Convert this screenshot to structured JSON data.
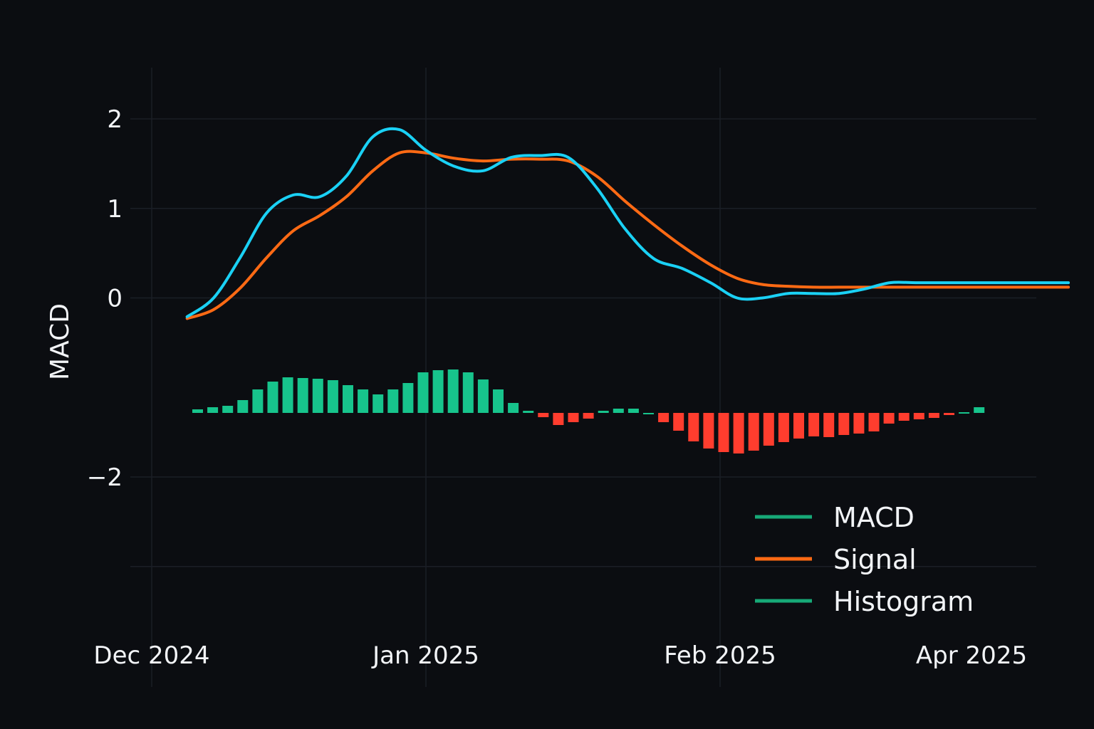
{
  "chart_data": {
    "type": "line",
    "ylabel": "MACD",
    "xlabel": "",
    "x_ticks": [
      "Dec 2024",
      "Jan 2025",
      "Feb 2025",
      "Apr 2025"
    ],
    "y_ticks": [
      2,
      1,
      0,
      -2
    ],
    "y_tick_labels": [
      "2",
      "1",
      "0",
      "−2"
    ],
    "ylim": [
      -2.4,
      2.45
    ],
    "grid": true,
    "legend_position": "bottom-right",
    "colors": {
      "background": "#0b0d11",
      "grid": "#1b1f26",
      "macd": "#1ad1f5",
      "signal": "#ff6a14",
      "hist_positive": "#17c48c",
      "hist_negative": "#ff3d2e",
      "legend_macd": "#17a977",
      "legend_histogram": "#17a977"
    },
    "series": [
      {
        "name": "MACD",
        "x": [
          "2024-12-05",
          "2024-12-08",
          "2024-12-11",
          "2024-12-14",
          "2024-12-17",
          "2024-12-20",
          "2024-12-23",
          "2024-12-26",
          "2024-12-29",
          "2025-01-01",
          "2025-01-04",
          "2025-01-07",
          "2025-01-10",
          "2025-01-13",
          "2025-01-16",
          "2025-01-19",
          "2025-01-22",
          "2025-01-25",
          "2025-01-28",
          "2025-01-31",
          "2025-02-03",
          "2025-02-06",
          "2025-02-09",
          "2025-02-12",
          "2025-02-15",
          "2025-02-18",
          "2025-02-21",
          "2025-02-24",
          "2025-02-27",
          "2025-03-02",
          "2025-03-05",
          "2025-03-08",
          "2025-03-11",
          "2025-03-14"
        ],
        "values": [
          -0.21,
          0.0,
          0.45,
          0.95,
          1.15,
          1.13,
          1.36,
          1.8,
          1.88,
          1.65,
          1.47,
          1.42,
          1.57,
          1.59,
          1.57,
          1.23,
          0.77,
          0.44,
          0.33,
          0.17,
          0.0,
          0.0,
          0.05,
          0.05,
          0.05,
          0.1,
          0.17,
          0.17,
          0.17,
          0.17,
          0.17,
          0.17,
          0.17,
          0.17
        ]
      },
      {
        "name": "Signal",
        "x": [
          "2024-12-05",
          "2024-12-08",
          "2024-12-11",
          "2024-12-14",
          "2024-12-17",
          "2024-12-20",
          "2024-12-23",
          "2024-12-26",
          "2024-12-29",
          "2025-01-01",
          "2025-01-04",
          "2025-01-07",
          "2025-01-10",
          "2025-01-13",
          "2025-01-16",
          "2025-01-19",
          "2025-01-22",
          "2025-01-25",
          "2025-01-28",
          "2025-01-31",
          "2025-02-03",
          "2025-02-06",
          "2025-02-09",
          "2025-02-12",
          "2025-02-15",
          "2025-02-18",
          "2025-02-21",
          "2025-02-24",
          "2025-02-27",
          "2025-03-02",
          "2025-03-05",
          "2025-03-08",
          "2025-03-11",
          "2025-03-14"
        ],
        "values": [
          -0.23,
          -0.13,
          0.11,
          0.45,
          0.75,
          0.92,
          1.13,
          1.42,
          1.62,
          1.62,
          1.56,
          1.53,
          1.55,
          1.55,
          1.53,
          1.36,
          1.08,
          0.82,
          0.58,
          0.37,
          0.22,
          0.15,
          0.13,
          0.12,
          0.12,
          0.12,
          0.12,
          0.12,
          0.12,
          0.12,
          0.12,
          0.12,
          0.12,
          0.12
        ]
      },
      {
        "name": "Histogram",
        "values": [
          0.05,
          0.08,
          0.1,
          0.18,
          0.33,
          0.44,
          0.5,
          0.49,
          0.48,
          0.46,
          0.39,
          0.33,
          0.26,
          0.33,
          0.42,
          0.57,
          0.6,
          0.61,
          0.57,
          0.47,
          0.33,
          0.14,
          0.03,
          -0.06,
          -0.17,
          -0.13,
          -0.08,
          0.03,
          0.06,
          0.06,
          0.0,
          -0.13,
          -0.25,
          -0.4,
          -0.5,
          -0.55,
          -0.57,
          -0.53,
          -0.46,
          -0.41,
          -0.36,
          -0.33,
          -0.34,
          -0.31,
          -0.29,
          -0.26,
          -0.15,
          -0.11,
          -0.09,
          -0.07,
          -0.03,
          0.01,
          0.08
        ]
      }
    ]
  },
  "legend": {
    "items": [
      {
        "label": "MACD",
        "color": "#17a977"
      },
      {
        "label": "Signal",
        "color": "#ff6a14"
      },
      {
        "label": "Histogram",
        "color": "#17a977"
      }
    ]
  }
}
